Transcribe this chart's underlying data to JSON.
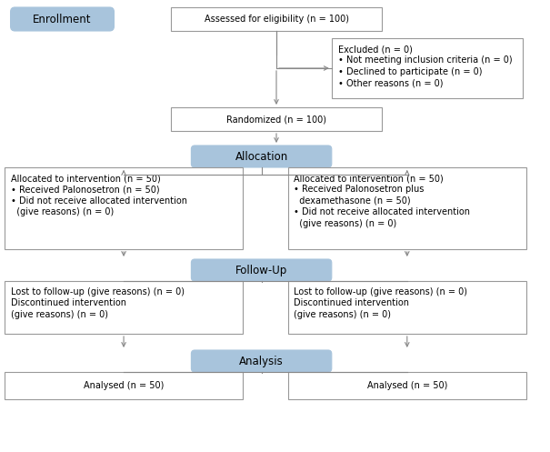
{
  "bg_color": "#ffffff",
  "box_border_color": "#999999",
  "blue_box_color": "#a8c4dc",
  "blue_box_edge_color": "#a8c4dc",
  "white_box_bg": "#ffffff",
  "enrollment_label": "Enrollment",
  "assess_text": "Assessed for eligibility (n = 100)",
  "excluded_text": "Excluded (n = 0)\n• Not meeting inclusion criteria (n = 0)\n• Declined to participate (n = 0)\n• Other reasons (n = 0)",
  "randomized_text": "Randomized (n = 100)",
  "allocation_label": "Allocation",
  "left_alloc_text": "Allocated to intervention (n = 50)\n• Received Palonosetron (n = 50)\n• Did not receive allocated intervention\n  (give reasons) (n = 0)",
  "right_alloc_text": "Allocated to intervention (n = 50)\n• Received Palonosetron plus\n  dexamethasone (n = 50)\n• Did not receive allocated intervention\n  (give reasons) (n = 0)",
  "followup_label": "Follow-Up",
  "left_followup_text": "Lost to follow-up (give reasons) (n = 0)\nDiscontinued intervention\n(give reasons) (n = 0)",
  "right_followup_text": "Lost to follow-up (give reasons) (n = 0)\nDiscontinued intervention\n(give reasons) (n = 0)",
  "analysis_label": "Analysis",
  "left_analysis_text": "Analysed (n = 50)",
  "right_analysis_text": "Analysed (n = 50)",
  "font_size": 7.0,
  "label_font_size": 8.5
}
